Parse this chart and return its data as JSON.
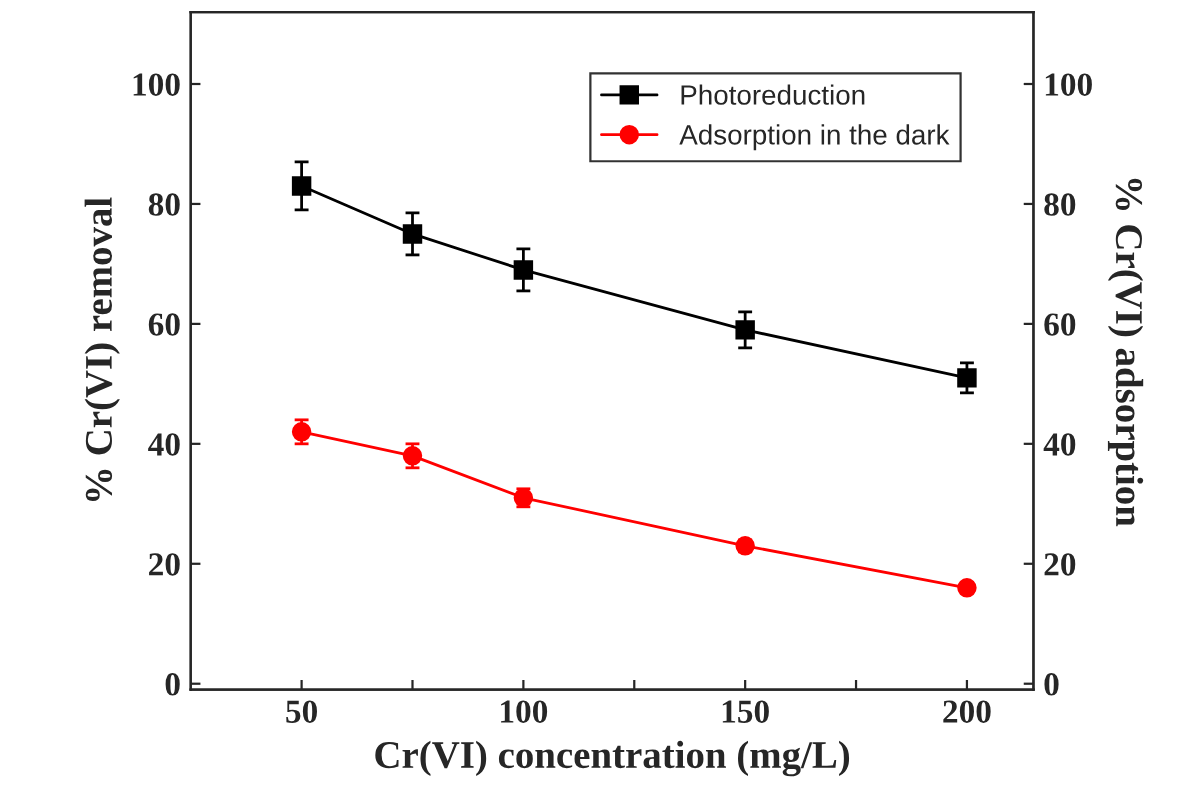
{
  "chart_data": {
    "type": "line",
    "xlabel": "Cr(VI) concentration (mg/L)",
    "ylabel": "% Cr(VI) removal",
    "y2label": "% Cr(VI) adsorption",
    "x": [
      50,
      75,
      100,
      150,
      200
    ],
    "series": [
      {
        "name": "Photoreduction",
        "color": "#000000",
        "marker": "square",
        "values": [
          83,
          75,
          69,
          59,
          51
        ],
        "errors": [
          4,
          3.5,
          3.5,
          3,
          2.5
        ]
      },
      {
        "name": "Adsorption in the dark",
        "color": "#ff0000",
        "marker": "circle",
        "values": [
          42,
          38,
          31,
          23,
          16
        ],
        "errors": [
          2,
          2,
          1.5,
          1,
          0.5
        ]
      }
    ],
    "xlim": [
      25,
      215
    ],
    "xticks": [
      50,
      {
        "value": 75,
        "label": null
      },
      100,
      {
        "value": 125,
        "label": null
      },
      150,
      {
        "value": 175,
        "label": null
      },
      200
    ],
    "ylim": [
      -1,
      112
    ],
    "yticks": [
      0,
      20,
      40,
      60,
      80,
      100
    ],
    "y2lim": [
      -1,
      112
    ],
    "y2ticks": [
      0,
      20,
      40,
      60,
      80,
      100
    ],
    "grid": false,
    "legend": "top right",
    "line_style": "solid"
  }
}
